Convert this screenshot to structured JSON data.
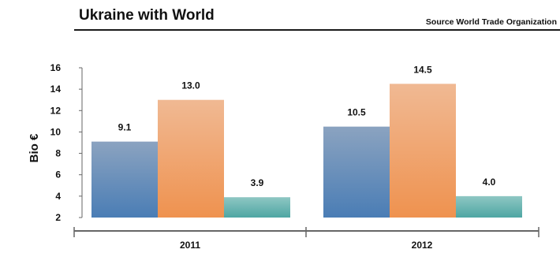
{
  "title": "Ukraine with World",
  "source": "Source World Trade Organization",
  "colors": {
    "header_rule": "#1a1a1a",
    "axis": "#666666"
  },
  "chart_data": {
    "type": "bar",
    "ylabel": "Bio €",
    "ylim": [
      2,
      16
    ],
    "y_ticks": [
      "2",
      "4",
      "6",
      "8",
      "10",
      "12",
      "14",
      "16"
    ],
    "grid": false,
    "legend": "none",
    "categories": [
      "2011",
      "2012"
    ],
    "series": [
      {
        "values": [
          9.1,
          10.5
        ],
        "labels": [
          "9.1",
          "10.5"
        ],
        "color_top": "#8ba3c0",
        "color_bottom": "#4a7db5"
      },
      {
        "values": [
          13.0,
          14.5
        ],
        "labels": [
          "13.0",
          "14.5"
        ],
        "color_top": "#f0b993",
        "color_bottom": "#ef924f"
      },
      {
        "values": [
          3.9,
          4.0
        ],
        "labels": [
          "3.9",
          "4.0"
        ],
        "color_top": "#8ec7c3",
        "color_bottom": "#4ea6a3"
      }
    ]
  }
}
